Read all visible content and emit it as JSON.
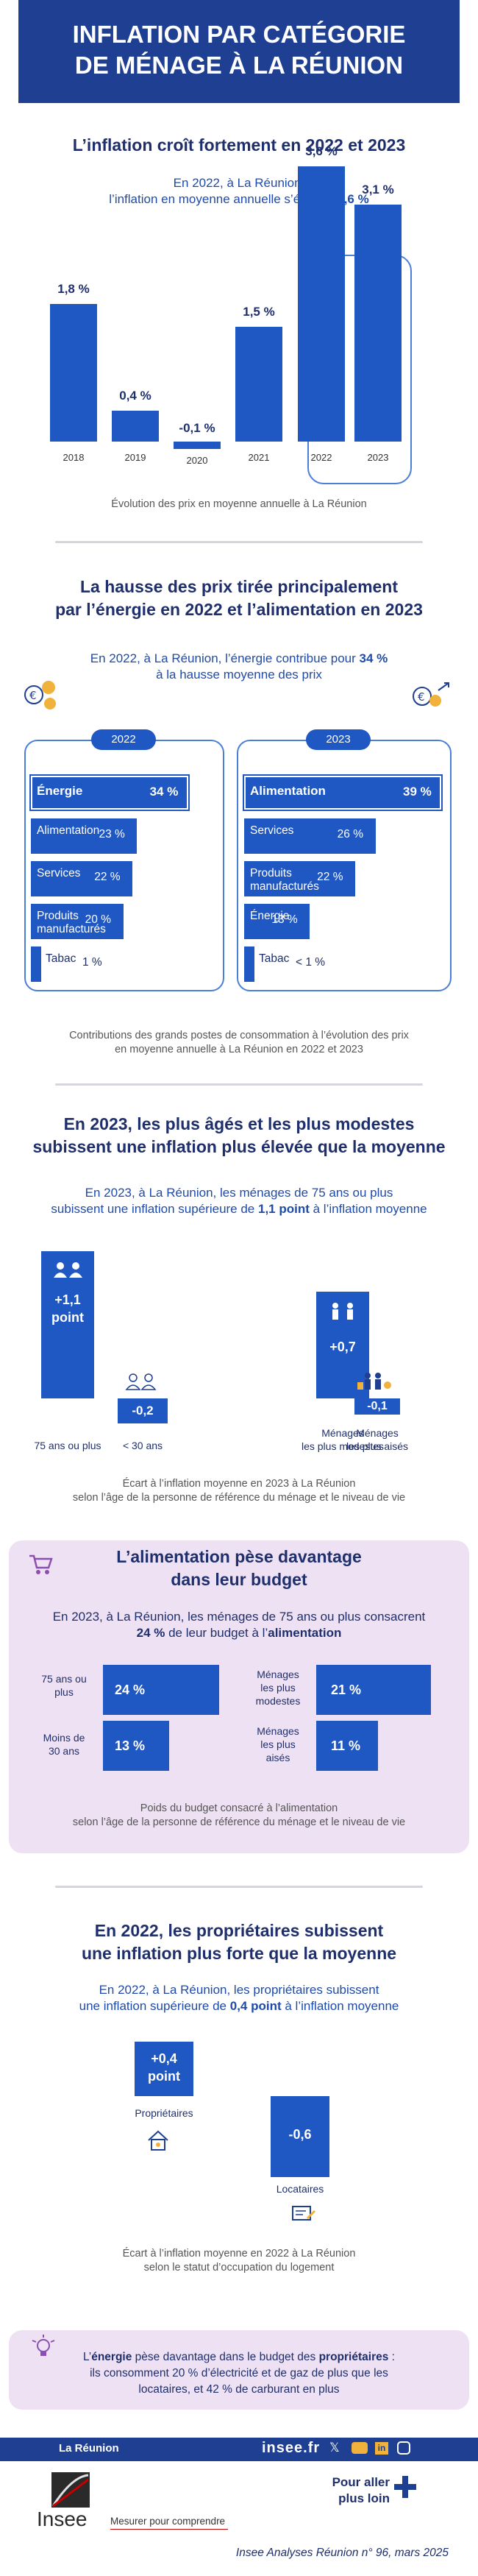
{
  "header": {
    "title_line1": "INFLATION PAR CATÉGORIE",
    "title_line2": "DE MÉNAGE À LA RÉUNION"
  },
  "section1": {
    "title": "L’inflation croît fortement en 2022 et 2023",
    "intro_line1": "En 2022, à La Réunion,",
    "intro_line2_pre": "l’inflation en moyenne annuelle s’élève à ",
    "intro_line2_bold": "3,6 %",
    "caption": "Évolution des prix en moyenne annuelle à La Réunion"
  },
  "chart_data": {
    "type": "bar",
    "categories": [
      "2018",
      "2019",
      "2020",
      "2021",
      "2022",
      "2023"
    ],
    "values": [
      1.8,
      0.4,
      -0.1,
      1.5,
      3.6,
      3.1
    ],
    "value_labels": [
      "1,8 %",
      "0,4 %",
      "-0,1 %",
      "1,5 %",
      "3,6 %",
      "3,1 %"
    ]
  },
  "section2": {
    "title_line1": "La hausse des prix tirée principalement",
    "title_line2": "par l’énergie en 2022 et l’alimentation en 2023",
    "intro_line1_pre": "En 2022, à La Réunion, l’énergie contribue pour ",
    "intro_line1_bold": "34 %",
    "intro_line2": "à la hausse moyenne des prix",
    "panel_2022": {
      "year": "2022",
      "items": [
        {
          "name": "Énergie",
          "value": "34 %",
          "share": 34
        },
        {
          "name": "Alimentation",
          "value": "23 %",
          "share": 23
        },
        {
          "name": "Services",
          "value": "22 %",
          "share": 22
        },
        {
          "name": "Produits manufacturés",
          "value": "20 %",
          "share": 20
        },
        {
          "name": "Tabac",
          "value": "1 %",
          "share": 1
        }
      ]
    },
    "panel_2023": {
      "year": "2023",
      "items": [
        {
          "name": "Alimentation",
          "value": "39 %",
          "share": 39
        },
        {
          "name": "Services",
          "value": "26 %",
          "share": 26
        },
        {
          "name": "Produits manufacturés",
          "value": "22 %",
          "share": 22
        },
        {
          "name": "Énergie",
          "value": "13 %",
          "share": 13
        },
        {
          "name": "Tabac",
          "value": "< 1 %",
          "share": 0.5
        }
      ]
    },
    "caption_line1": "Contributions des grands postes de consommation à l’évolution des prix",
    "caption_line2": "en moyenne annuelle à La Réunion en 2022 et 2023"
  },
  "section3": {
    "title_line1": "En 2023, les plus âgés et les plus modestes",
    "title_line2": "subissent une inflation plus élevée que la moyenne",
    "intro_line1": "En 2023, à La Réunion, les ménages de 75 ans ou plus",
    "intro_line2_pre": "subissent une inflation supérieure de ",
    "intro_line2_bold": "1,1 point",
    "intro_line2_post": " à l’inflation moyenne",
    "bars": [
      {
        "value": "+1,1",
        "unit": "point",
        "label": "75 ans ou plus",
        "v": 1.1
      },
      {
        "value": "-0,2",
        "label": "< 30 ans",
        "v": -0.2
      },
      {
        "value": "+0,7",
        "label_line1": "Ménages",
        "label_line2": "les plus modestes",
        "v": 0.7
      },
      {
        "value": "-0,1",
        "label_line1": "Ménages",
        "label_line2": "les plus aisés",
        "v": -0.1
      }
    ],
    "caption_line1": "Écart à l’inflation moyenne en 2023 à La Réunion",
    "caption_line2": "selon l’âge de la personne de référence du ménage et le niveau de vie"
  },
  "section4": {
    "title_line1": "L’alimentation pèse davantage",
    "title_line2": "dans leur budget",
    "intro_line1": "En 2023, à La Réunion, les ménages de 75 ans ou plus consacrent",
    "intro_line2_bold1": "24 %",
    "intro_line2_mid": " de leur budget à l’",
    "intro_line2_bold2": "alimentation",
    "left_bars": [
      {
        "label_line1": "75 ans ou",
        "label_line2": "plus",
        "value": "24 %",
        "share": 24
      },
      {
        "label_line1": "Moins de",
        "label_line2": "30 ans",
        "value": "13 %",
        "share": 13
      }
    ],
    "right_bars": [
      {
        "label_line1": "Ménages",
        "label_line2": "les plus",
        "label_line3": "modestes",
        "value": "21 %",
        "share": 21
      },
      {
        "label_line1": "Ménages",
        "label_line2": "les plus",
        "label_line3": "aisés",
        "value": "11 %",
        "share": 11
      }
    ],
    "caption_line1": "Poids du budget consacré à l’alimentation",
    "caption_line2": "selon l’âge de la personne de référence du ménage et le niveau de vie"
  },
  "section5": {
    "title_line1": "En 2022, les propriétaires subissent",
    "title_line2": "une inflation plus forte que la moyenne",
    "intro_line1": "En 2022, à La Réunion, les propriétaires subissent",
    "intro_line2_pre": "une inflation supérieure de ",
    "intro_line2_bold": "0,4 point",
    "intro_line2_post": " à l’inflation moyenne",
    "owners": {
      "value": "+0,4",
      "unit": "point",
      "label": "Propriétaires",
      "v": 0.4
    },
    "tenants": {
      "value": "-0,6",
      "label": "Locataires",
      "v": -0.6
    },
    "caption_line1": "Écart à l’inflation moyenne en 2022 à La Réunion",
    "caption_line2": "selon le statut d’occupation du logement"
  },
  "note": {
    "line1_pre": "L’",
    "line1_bold1": "énergie",
    "line1_mid": " pèse davantage dans le budget des ",
    "line1_bold2": "propriétaires",
    "line1_post": " :",
    "line2": "ils consomment 20 % d’électricité et de gaz de plus que les",
    "line3": "locataires, et 42 % de carburant en plus"
  },
  "footer": {
    "region": "La Réunion",
    "site": "insee.fr",
    "logo_text": "Insee",
    "tagline": "Mesurer pour comprendre",
    "more_line1": "Pour aller",
    "more_line2": "plus loin",
    "publication": "Insee Analyses Réunion n° 96, mars 2025"
  },
  "colors": {
    "navy": "#1f3f93",
    "bar_blue": "#1f57c3",
    "lilac": "#eee1f3",
    "title": "#1f2f6b"
  }
}
